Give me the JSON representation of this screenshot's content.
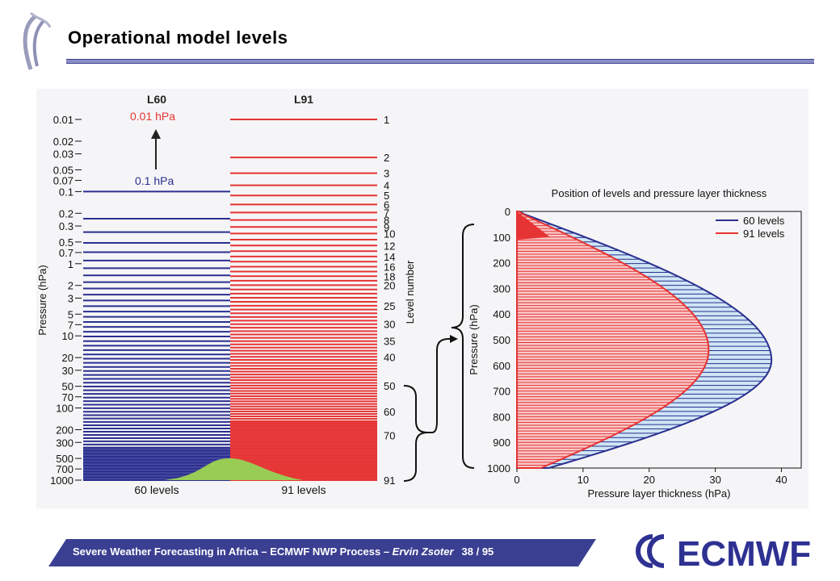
{
  "slide": {
    "title": "Operational model levels"
  },
  "footer": {
    "prefix": "Severe Weather Forecasting in Africa – ECMWF NWP Process – ",
    "author": "Ervin Zsoter",
    "page": "38 / 95"
  },
  "logo": {
    "text": "ECMWF"
  },
  "colors": {
    "l60": "#2b2f8f",
    "l91": "#e63333",
    "orography": "#99cc55",
    "light_blue": "#cfe6f5",
    "light_red": "#f8c8c8",
    "footer_bg": "#3b3f92"
  },
  "left_chart": {
    "header_l60": "L60",
    "header_l91": "L91",
    "top_label_red": "0.01 hPa",
    "top_label_blue": "0.1 hPa",
    "ylabel": "Pressure (hPa)",
    "right_label": "Level number",
    "bottom_left": "60 levels",
    "bottom_right": "91 levels",
    "pressure_ticks": [
      "0.01",
      "0.02",
      "0.03",
      "0.05",
      "0.07",
      "0.1",
      "0.2",
      "0.3",
      "0.5",
      "0.7",
      "1",
      "2",
      "3",
      "5",
      "7",
      "10",
      "20",
      "30",
      "50",
      "70",
      "100",
      "200",
      "300",
      "500",
      "700",
      "1000"
    ],
    "level_ticks": [
      "1",
      "2",
      "3",
      "4",
      "5",
      "6",
      "7",
      "8",
      "9",
      "10",
      "12",
      "14",
      "16",
      "18",
      "20",
      "25",
      "30",
      "35",
      "40",
      "50",
      "60",
      "70",
      "91"
    ]
  },
  "chart_data": {
    "type": "area",
    "title": "Position of levels and pressure layer thickness",
    "xlabel": "Pressure layer thickness (hPa)",
    "ylabel": "Pressure (hPa)",
    "xlim": [
      0,
      43
    ],
    "ylim": [
      1000,
      0
    ],
    "xticks": [
      "0",
      "10",
      "20",
      "30",
      "40"
    ],
    "yticks": [
      "0",
      "100",
      "200",
      "300",
      "400",
      "500",
      "600",
      "700",
      "800",
      "900",
      "1000"
    ],
    "legend_position": "top-right",
    "series": [
      {
        "name": "60 levels",
        "levels": 60,
        "color": "#2b2f8f",
        "peak_pressure": 580,
        "peak_thickness": 38.5
      },
      {
        "name": "91 levels",
        "levels": 91,
        "color": "#e63333",
        "peak_pressure": 540,
        "peak_thickness": 29
      }
    ]
  }
}
